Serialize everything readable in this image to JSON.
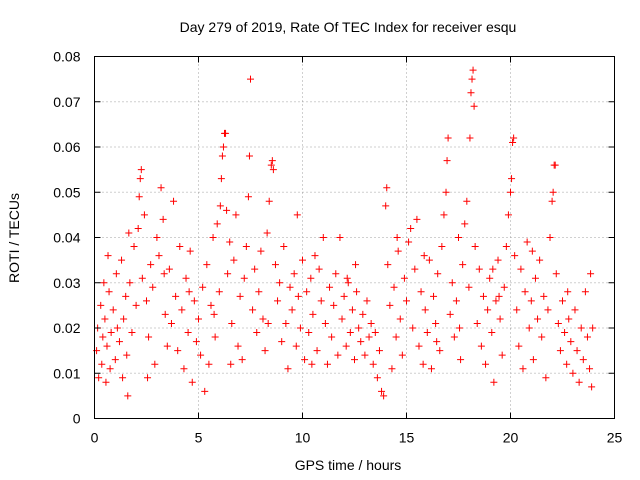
{
  "chart_data": {
    "type": "scatter",
    "title": "Day 279 of 2019, Rate Of TEC Index for receiver esqu",
    "xlabel": "GPS time / hours",
    "ylabel": "ROTI / TECUs",
    "xlim": [
      0,
      25
    ],
    "ylim": [
      0,
      0.08
    ],
    "grid": true,
    "marker": "+",
    "color": "#ff0000",
    "x_ticks": [
      {
        "value": 0,
        "label": "0"
      },
      {
        "value": 5,
        "label": "5"
      },
      {
        "value": 10,
        "label": "10"
      },
      {
        "value": 15,
        "label": "15"
      },
      {
        "value": 20,
        "label": "20"
      },
      {
        "value": 25,
        "label": "25"
      }
    ],
    "y_ticks": [
      {
        "value": 0,
        "label": "0"
      },
      {
        "value": 0.01,
        "label": "0.01"
      },
      {
        "value": 0.02,
        "label": "0.02"
      },
      {
        "value": 0.03,
        "label": "0.03"
      },
      {
        "value": 0.04,
        "label": "0.04"
      },
      {
        "value": 0.05,
        "label": "0.05"
      },
      {
        "value": 0.06,
        "label": "0.06"
      },
      {
        "value": 0.07,
        "label": "0.07"
      },
      {
        "value": 0.08,
        "label": "0.08"
      }
    ],
    "points": [
      [
        0.1,
        0.015
      ],
      [
        0.15,
        0.02
      ],
      [
        0.2,
        0.009
      ],
      [
        0.3,
        0.025
      ],
      [
        0.35,
        0.012
      ],
      [
        0.4,
        0.018
      ],
      [
        0.45,
        0.03
      ],
      [
        0.5,
        0.022
      ],
      [
        0.55,
        0.008
      ],
      [
        0.6,
        0.016
      ],
      [
        0.7,
        0.028
      ],
      [
        0.75,
        0.011
      ],
      [
        0.8,
        0.019
      ],
      [
        0.9,
        0.024
      ],
      [
        1.0,
        0.013
      ],
      [
        1.05,
        0.032
      ],
      [
        1.1,
        0.02
      ],
      [
        1.2,
        0.017
      ],
      [
        1.3,
        0.035
      ],
      [
        1.35,
        0.009
      ],
      [
        1.4,
        0.022
      ],
      [
        1.5,
        0.027
      ],
      [
        1.55,
        0.014
      ],
      [
        1.6,
        0.005
      ],
      [
        1.7,
        0.03
      ],
      [
        1.8,
        0.019
      ],
      [
        1.9,
        0.038
      ],
      [
        2.0,
        0.025
      ],
      [
        2.1,
        0.042
      ],
      [
        2.15,
        0.049
      ],
      [
        2.2,
        0.053
      ],
      [
        2.25,
        0.055
      ],
      [
        2.3,
        0.031
      ],
      [
        2.4,
        0.045
      ],
      [
        2.5,
        0.026
      ],
      [
        2.6,
        0.018
      ],
      [
        2.7,
        0.034
      ],
      [
        2.8,
        0.029
      ],
      [
        2.9,
        0.012
      ],
      [
        3.0,
        0.04
      ],
      [
        3.1,
        0.036
      ],
      [
        3.2,
        0.051
      ],
      [
        3.3,
        0.044
      ],
      [
        3.4,
        0.023
      ],
      [
        3.5,
        0.016
      ],
      [
        3.6,
        0.033
      ],
      [
        3.7,
        0.021
      ],
      [
        3.8,
        0.048
      ],
      [
        3.9,
        0.027
      ],
      [
        4.0,
        0.015
      ],
      [
        4.1,
        0.038
      ],
      [
        4.2,
        0.024
      ],
      [
        4.3,
        0.011
      ],
      [
        4.4,
        0.031
      ],
      [
        4.5,
        0.019
      ],
      [
        4.6,
        0.037
      ],
      [
        4.7,
        0.008
      ],
      [
        4.8,
        0.026
      ],
      [
        4.9,
        0.017
      ],
      [
        5.0,
        0.022
      ],
      [
        5.1,
        0.014
      ],
      [
        5.2,
        0.029
      ],
      [
        5.3,
        0.006
      ],
      [
        5.4,
        0.034
      ],
      [
        5.5,
        0.012
      ],
      [
        5.6,
        0.025
      ],
      [
        5.7,
        0.04
      ],
      [
        5.8,
        0.018
      ],
      [
        5.9,
        0.043
      ],
      [
        6.0,
        0.028
      ],
      [
        6.05,
        0.047
      ],
      [
        6.1,
        0.053
      ],
      [
        6.15,
        0.058
      ],
      [
        6.2,
        0.06
      ],
      [
        6.25,
        0.063
      ],
      [
        6.3,
        0.063
      ],
      [
        6.35,
        0.046
      ],
      [
        6.4,
        0.032
      ],
      [
        6.5,
        0.039
      ],
      [
        6.6,
        0.021
      ],
      [
        6.7,
        0.035
      ],
      [
        6.8,
        0.045
      ],
      [
        6.9,
        0.016
      ],
      [
        7.0,
        0.027
      ],
      [
        7.1,
        0.013
      ],
      [
        7.2,
        0.031
      ],
      [
        7.3,
        0.038
      ],
      [
        7.4,
        0.049
      ],
      [
        7.45,
        0.058
      ],
      [
        7.5,
        0.075
      ],
      [
        7.6,
        0.024
      ],
      [
        7.7,
        0.033
      ],
      [
        7.8,
        0.019
      ],
      [
        7.9,
        0.028
      ],
      [
        8.0,
        0.037
      ],
      [
        8.1,
        0.022
      ],
      [
        8.2,
        0.015
      ],
      [
        8.3,
        0.041
      ],
      [
        8.4,
        0.048
      ],
      [
        8.5,
        0.056
      ],
      [
        8.55,
        0.057
      ],
      [
        8.6,
        0.055
      ],
      [
        8.7,
        0.034
      ],
      [
        8.8,
        0.026
      ],
      [
        8.9,
        0.03
      ],
      [
        9.0,
        0.017
      ],
      [
        9.1,
        0.038
      ],
      [
        9.2,
        0.021
      ],
      [
        9.3,
        0.011
      ],
      [
        9.4,
        0.029
      ],
      [
        9.5,
        0.024
      ],
      [
        9.6,
        0.032
      ],
      [
        9.7,
        0.016
      ],
      [
        9.8,
        0.027
      ],
      [
        9.9,
        0.02
      ],
      [
        10.0,
        0.035
      ],
      [
        10.1,
        0.013
      ],
      [
        10.2,
        0.028
      ],
      [
        10.3,
        0.019
      ],
      [
        10.4,
        0.031
      ],
      [
        10.5,
        0.023
      ],
      [
        10.6,
        0.036
      ],
      [
        10.7,
        0.015
      ],
      [
        10.8,
        0.033
      ],
      [
        10.9,
        0.026
      ],
      [
        11.0,
        0.04
      ],
      [
        11.1,
        0.021
      ],
      [
        11.2,
        0.012
      ],
      [
        11.3,
        0.029
      ],
      [
        11.4,
        0.018
      ],
      [
        11.5,
        0.025
      ],
      [
        11.6,
        0.032
      ],
      [
        11.7,
        0.014
      ],
      [
        11.8,
        0.04
      ],
      [
        11.9,
        0.022
      ],
      [
        12.0,
        0.027
      ],
      [
        12.1,
        0.016
      ],
      [
        12.2,
        0.03
      ],
      [
        12.3,
        0.019
      ],
      [
        12.4,
        0.024
      ],
      [
        12.5,
        0.013
      ],
      [
        12.6,
        0.028
      ],
      [
        12.7,
        0.02
      ],
      [
        12.8,
        0.017
      ],
      [
        12.9,
        0.023
      ],
      [
        13.0,
        0.014
      ],
      [
        13.1,
        0.026
      ],
      [
        13.2,
        0.018
      ],
      [
        13.3,
        0.021
      ],
      [
        13.4,
        0.012
      ],
      [
        13.5,
        0.019
      ],
      [
        13.6,
        0.009
      ],
      [
        13.7,
        0.015
      ],
      [
        13.8,
        0.006
      ],
      [
        13.9,
        0.005
      ],
      [
        14.0,
        0.047
      ],
      [
        14.05,
        0.051
      ],
      [
        14.1,
        0.034
      ],
      [
        14.2,
        0.025
      ],
      [
        14.3,
        0.011
      ],
      [
        14.4,
        0.029
      ],
      [
        14.5,
        0.018
      ],
      [
        14.6,
        0.037
      ],
      [
        14.7,
        0.022
      ],
      [
        14.8,
        0.014
      ],
      [
        14.9,
        0.031
      ],
      [
        15.0,
        0.026
      ],
      [
        15.1,
        0.039
      ],
      [
        15.2,
        0.042
      ],
      [
        15.3,
        0.02
      ],
      [
        15.4,
        0.033
      ],
      [
        15.5,
        0.044
      ],
      [
        15.6,
        0.016
      ],
      [
        15.7,
        0.028
      ],
      [
        15.8,
        0.012
      ],
      [
        15.9,
        0.024
      ],
      [
        16.0,
        0.019
      ],
      [
        16.1,
        0.035
      ],
      [
        16.2,
        0.011
      ],
      [
        16.3,
        0.027
      ],
      [
        16.4,
        0.021
      ],
      [
        16.5,
        0.032
      ],
      [
        16.6,
        0.015
      ],
      [
        16.7,
        0.038
      ],
      [
        16.8,
        0.045
      ],
      [
        16.9,
        0.05
      ],
      [
        16.95,
        0.057
      ],
      [
        17.0,
        0.062
      ],
      [
        17.1,
        0.023
      ],
      [
        17.2,
        0.03
      ],
      [
        17.3,
        0.018
      ],
      [
        17.4,
        0.026
      ],
      [
        17.5,
        0.04
      ],
      [
        17.6,
        0.013
      ],
      [
        17.7,
        0.034
      ],
      [
        17.8,
        0.043
      ],
      [
        17.9,
        0.048
      ],
      [
        18.0,
        0.029
      ],
      [
        18.05,
        0.062
      ],
      [
        18.1,
        0.072
      ],
      [
        18.15,
        0.075
      ],
      [
        18.2,
        0.077
      ],
      [
        18.25,
        0.069
      ],
      [
        18.3,
        0.038
      ],
      [
        18.4,
        0.021
      ],
      [
        18.5,
        0.033
      ],
      [
        18.6,
        0.016
      ],
      [
        18.7,
        0.027
      ],
      [
        18.8,
        0.012
      ],
      [
        18.9,
        0.024
      ],
      [
        19.0,
        0.031
      ],
      [
        19.1,
        0.019
      ],
      [
        19.2,
        0.008
      ],
      [
        19.3,
        0.026
      ],
      [
        19.4,
        0.035
      ],
      [
        19.5,
        0.022
      ],
      [
        19.6,
        0.014
      ],
      [
        19.7,
        0.029
      ],
      [
        19.8,
        0.038
      ],
      [
        19.9,
        0.045
      ],
      [
        20.0,
        0.05
      ],
      [
        20.05,
        0.053
      ],
      [
        20.1,
        0.061
      ],
      [
        20.15,
        0.062
      ],
      [
        20.2,
        0.036
      ],
      [
        20.3,
        0.024
      ],
      [
        20.4,
        0.016
      ],
      [
        20.5,
        0.033
      ],
      [
        20.6,
        0.011
      ],
      [
        20.7,
        0.028
      ],
      [
        20.8,
        0.039
      ],
      [
        20.9,
        0.02
      ],
      [
        21.0,
        0.026
      ],
      [
        21.1,
        0.013
      ],
      [
        21.2,
        0.031
      ],
      [
        21.3,
        0.022
      ],
      [
        21.4,
        0.035
      ],
      [
        21.5,
        0.018
      ],
      [
        21.6,
        0.027
      ],
      [
        21.7,
        0.009
      ],
      [
        21.8,
        0.024
      ],
      [
        21.9,
        0.04
      ],
      [
        22.0,
        0.048
      ],
      [
        22.05,
        0.05
      ],
      [
        22.1,
        0.056
      ],
      [
        22.15,
        0.056
      ],
      [
        22.2,
        0.032
      ],
      [
        22.3,
        0.021
      ],
      [
        22.4,
        0.015
      ],
      [
        22.5,
        0.026
      ],
      [
        22.6,
        0.019
      ],
      [
        22.7,
        0.012
      ],
      [
        22.8,
        0.022
      ],
      [
        22.9,
        0.017
      ],
      [
        23.0,
        0.01
      ],
      [
        23.1,
        0.024
      ],
      [
        23.2,
        0.015
      ],
      [
        23.3,
        0.008
      ],
      [
        23.4,
        0.02
      ],
      [
        23.5,
        0.013
      ],
      [
        23.6,
        0.028
      ],
      [
        23.7,
        0.018
      ],
      [
        23.8,
        0.011
      ],
      [
        23.85,
        0.032
      ],
      [
        23.9,
        0.007
      ],
      [
        23.95,
        0.02
      ],
      [
        1.65,
        0.041
      ],
      [
        3.35,
        0.032
      ],
      [
        5.75,
        0.023
      ],
      [
        9.75,
        0.045
      ],
      [
        12.55,
        0.034
      ],
      [
        14.55,
        0.04
      ],
      [
        16.45,
        0.017
      ],
      [
        19.45,
        0.027
      ],
      [
        21.05,
        0.037
      ],
      [
        0.65,
        0.036
      ],
      [
        2.55,
        0.009
      ],
      [
        4.55,
        0.028
      ],
      [
        6.55,
        0.012
      ],
      [
        8.35,
        0.021
      ],
      [
        10.45,
        0.012
      ],
      [
        12.15,
        0.031
      ],
      [
        15.85,
        0.036
      ],
      [
        17.55,
        0.02
      ],
      [
        19.15,
        0.033
      ],
      [
        22.75,
        0.028
      ]
    ]
  }
}
